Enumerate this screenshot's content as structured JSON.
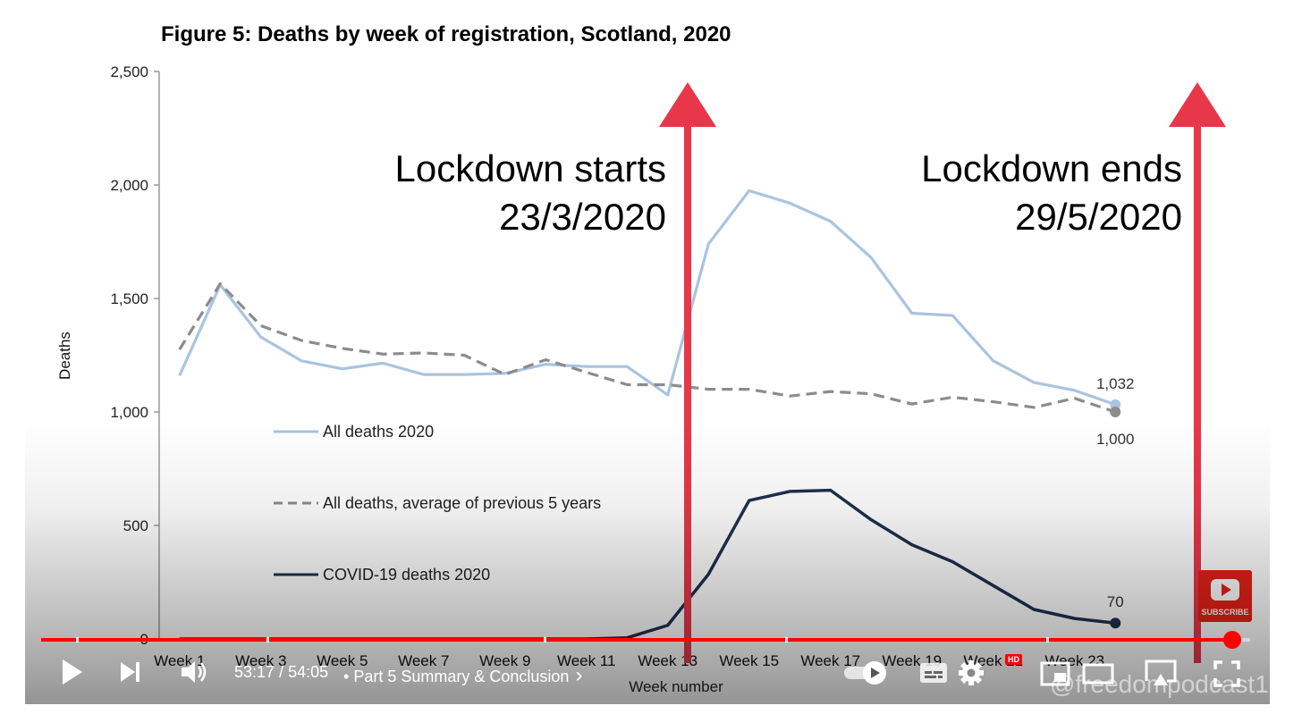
{
  "chart_data": {
    "type": "line",
    "title": "Figure 5: Deaths by week of registration, Scotland, 2020",
    "xlabel": "Week number",
    "ylabel": "Deaths",
    "ylim": [
      0,
      2500
    ],
    "y_ticks": [
      0,
      500,
      1000,
      1500,
      2000,
      2500
    ],
    "y_tick_labels": [
      "0",
      "500",
      "1,000",
      "1,500",
      "2,000",
      "2,500"
    ],
    "x": [
      1,
      2,
      3,
      4,
      5,
      6,
      7,
      8,
      9,
      10,
      11,
      12,
      13,
      14,
      15,
      16,
      17,
      18,
      19,
      20,
      21,
      22,
      23,
      24
    ],
    "x_tick_labels": [
      "Week 1",
      "Week 3",
      "Week 5",
      "Week 7",
      "Week 9",
      "Week 11",
      "Week 13",
      "Week 15",
      "Week 17",
      "Week 19",
      "Week 21",
      "Week 23"
    ],
    "x_tick_weeks": [
      1,
      3,
      5,
      7,
      9,
      11,
      13,
      15,
      17,
      19,
      21,
      23
    ],
    "grid": false,
    "legend_position": "left-center",
    "series": [
      {
        "name": "All deaths 2020",
        "color": "#a9c4df",
        "dash": "solid",
        "values": [
          1160,
          1560,
          1330,
          1225,
          1190,
          1215,
          1165,
          1165,
          1170,
          1210,
          1200,
          1200,
          1075,
          1740,
          1975,
          1920,
          1840,
          1680,
          1435,
          1425,
          1225,
          1130,
          1095,
          1032
        ]
      },
      {
        "name": "All deaths, average of previous 5 years",
        "color": "#8c8c8c",
        "dash": "dashed",
        "values": [
          1275,
          1565,
          1380,
          1315,
          1280,
          1255,
          1260,
          1250,
          1165,
          1230,
          1175,
          1120,
          1120,
          1100,
          1100,
          1070,
          1090,
          1080,
          1035,
          1065,
          1045,
          1020,
          1060,
          1000
        ]
      },
      {
        "name": "COVID-19 deaths 2020",
        "color": "#1f3050",
        "dash": "solid",
        "values": [
          0,
          0,
          0,
          0,
          0,
          0,
          0,
          0,
          0,
          0,
          0,
          5,
          60,
          285,
          610,
          650,
          655,
          525,
          415,
          340,
          235,
          130,
          90,
          70
        ]
      }
    ],
    "end_labels": [
      {
        "series": 0,
        "text": "1,032"
      },
      {
        "series": 1,
        "text": "1,000"
      },
      {
        "series": 2,
        "text": "70"
      }
    ],
    "annotations": [
      {
        "line1": "Lockdown starts",
        "line2": "23/3/2020",
        "color": "#e8374a"
      },
      {
        "line1": "Lockdown ends",
        "line2": "29/5/2020",
        "color": "#e8374a"
      }
    ]
  },
  "player": {
    "time_current": "53:17",
    "time_separator": "/",
    "time_total": "54:05",
    "chapter_bullet": "•",
    "chapter_title": "Part 5 Summary & Conclusion",
    "chapter_chevron": "›",
    "progress_fraction": 0.985,
    "hd_badge": "HD",
    "subscribe_label": "SUBSCRIBE",
    "watermark": "@freedompodcast1",
    "accent_color": "#ff0000",
    "icons": [
      "play-icon",
      "next-icon",
      "volume-icon",
      "autoplay-toggle-icon",
      "subtitles-icon",
      "settings-icon",
      "miniplayer-icon",
      "theater-mode-icon",
      "cast-icon",
      "fullscreen-icon"
    ]
  }
}
